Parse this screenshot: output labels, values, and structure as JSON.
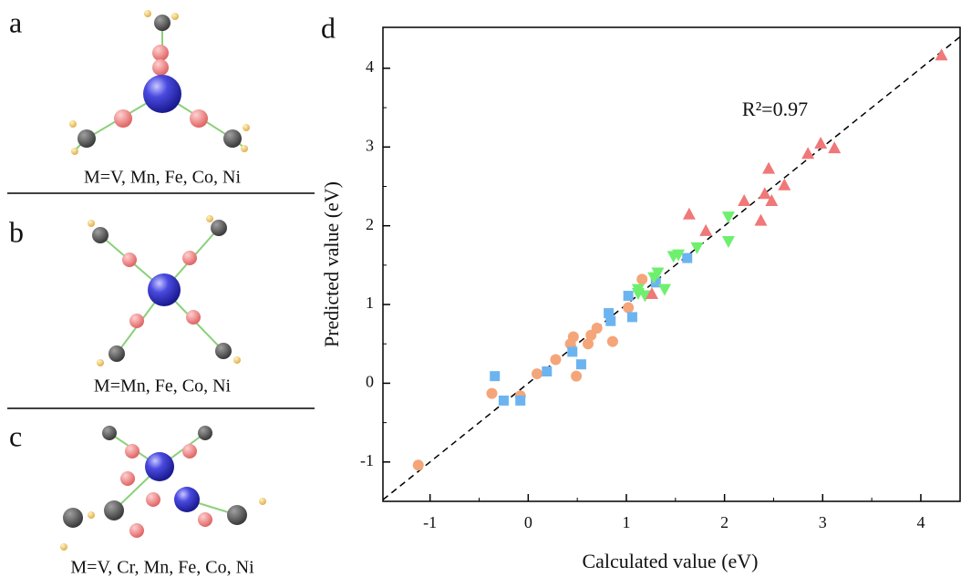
{
  "panels": [
    {
      "label": "a",
      "caption": "M=V, Mn, Fe, Co, Ni"
    },
    {
      "label": "b",
      "caption": "M=Mn, Fe, Co, Ni"
    },
    {
      "label": "c",
      "caption": "M=V, Cr, Mn, Fe, Co, Ni"
    }
  ],
  "chart_data": {
    "type": "scatter",
    "panel_label": "d",
    "x_label": "Calculated value (eV)",
    "y_label": "Predicted value (eV)",
    "annotation": "R²=0.97",
    "xlim": [
      -1.48,
      4.4
    ],
    "ylim": [
      -1.5,
      4.52
    ],
    "xticks": [
      -1,
      0,
      1,
      2,
      3,
      4
    ],
    "yticks": [
      -1,
      0,
      1,
      2,
      3,
      4
    ],
    "series": [
      {
        "color": "#f4a57a",
        "marker": "circle",
        "x": [
          -1.12,
          -0.37,
          -0.08,
          0.09,
          0.28,
          0.46,
          0.43,
          0.49,
          0.61,
          0.64,
          0.7,
          0.86,
          1.02,
          1.16
        ],
        "values": [
          -1.04,
          -0.13,
          -0.16,
          0.12,
          0.3,
          0.59,
          0.5,
          0.09,
          0.5,
          0.61,
          0.7,
          0.53,
          0.96,
          1.32
        ]
      },
      {
        "color": "#6cb4f0",
        "marker": "square",
        "x": [
          -0.34,
          -0.25,
          -0.08,
          0.19,
          0.45,
          0.54,
          0.82,
          0.84,
          1.02,
          1.06,
          1.3,
          1.62
        ],
        "values": [
          0.09,
          -0.22,
          -0.22,
          0.15,
          0.4,
          0.24,
          0.89,
          0.79,
          1.11,
          0.84,
          1.28,
          1.59
        ]
      },
      {
        "color": "#6ef06e",
        "marker": "triangle-down",
        "x": [
          1.12,
          1.19,
          1.28,
          1.32,
          1.39,
          1.48,
          1.53,
          1.72,
          2.04,
          2.04,
          1.12
        ],
        "values": [
          1.19,
          1.11,
          1.34,
          1.4,
          1.19,
          1.61,
          1.63,
          1.72,
          2.11,
          1.8,
          1.14
        ]
      },
      {
        "color": "#f07878",
        "marker": "triangle-up",
        "x": [
          1.26,
          1.64,
          1.81,
          2.2,
          2.37,
          2.41,
          2.45,
          2.48,
          2.61,
          2.85,
          2.98,
          3.12,
          4.21
        ],
        "values": [
          1.14,
          2.15,
          1.94,
          2.32,
          2.07,
          2.41,
          2.73,
          2.32,
          2.52,
          2.92,
          3.05,
          2.99,
          4.17
        ]
      }
    ]
  }
}
